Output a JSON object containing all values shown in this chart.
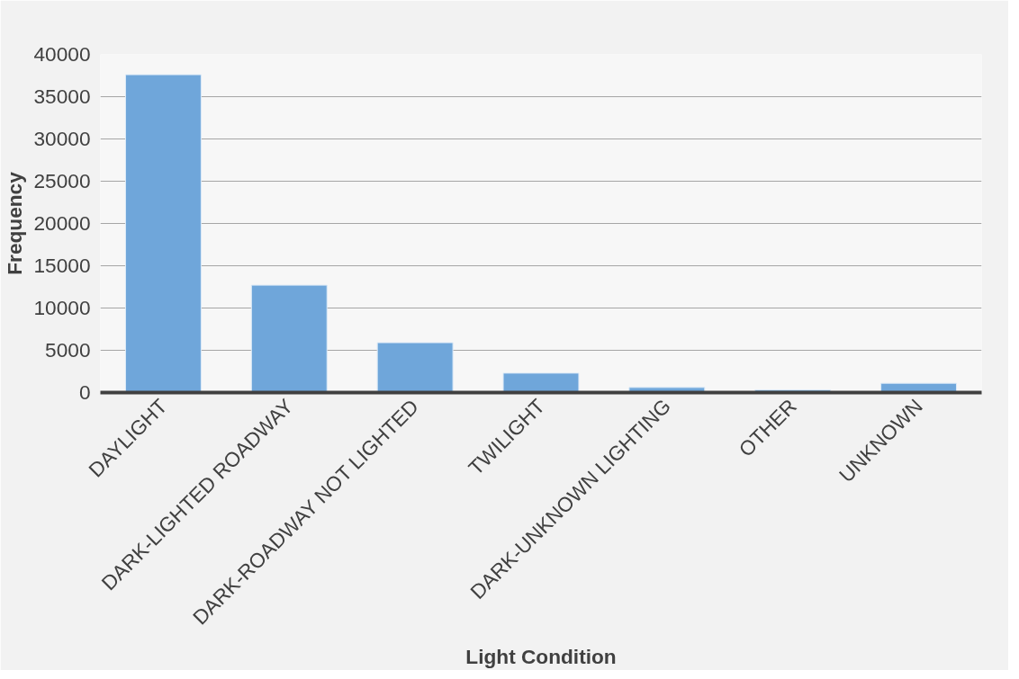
{
  "chart_data": {
    "type": "bar",
    "xlabel": "Light Condition",
    "ylabel": "Frequency",
    "categories": [
      "DAYLIGHT",
      "DARK-LIGHTED ROADWAY",
      "DARK-ROADWAY NOT LIGHTED",
      "TWILIGHT",
      "DARK-UNKNOWN LIGHTING",
      "OTHER",
      "UNKNOWN"
    ],
    "values": [
      37600,
      12700,
      5900,
      2300,
      600,
      300,
      1100
    ],
    "color": "#6fa6da",
    "ylim": [
      0,
      40000
    ],
    "yticks": [
      0,
      5000,
      10000,
      15000,
      20000,
      25000,
      30000,
      35000,
      40000
    ],
    "grid": "y"
  }
}
